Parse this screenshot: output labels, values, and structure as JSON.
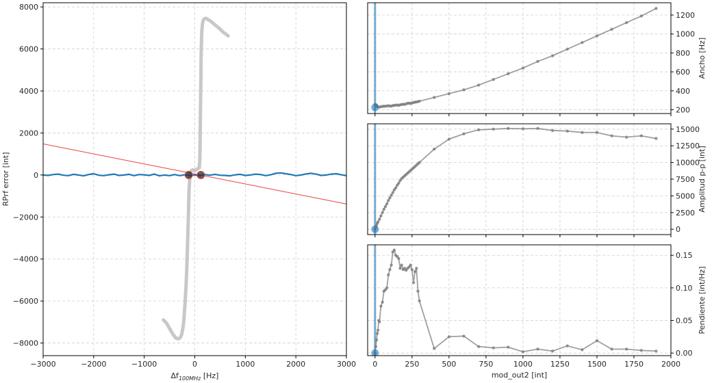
{
  "chart_data": [
    {
      "type": "line",
      "panel": "left",
      "xlabel_main": "Δf",
      "xlabel_sub": "100MHz",
      "xlabel_unit": " [Hz]",
      "ylabel": "RPrf error [int]",
      "xlim": [
        -3000,
        3000
      ],
      "ylim": [
        -8600,
        8200
      ],
      "xticks": [
        -3000,
        -2000,
        -1000,
        0,
        1000,
        2000,
        3000
      ],
      "yticks": [
        -8000,
        -6000,
        -4000,
        -2000,
        0,
        2000,
        4000,
        6000,
        8000
      ],
      "xtick_labels": [
        "−3000",
        "−2000",
        "−1000",
        "0",
        "1000",
        "2000",
        "3000"
      ],
      "ytick_labels": [
        "−8000",
        "−6000",
        "−4000",
        "−2000",
        "0",
        "2000",
        "4000",
        "6000",
        "8000"
      ],
      "grid": true,
      "colors": {
        "signal": "#1f77b4",
        "trace": "#c8c8c8",
        "fit": "#e8413c",
        "marker": "#2b2b2b"
      },
      "series": [
        {
          "role": "gray-trace",
          "x": [
            -620,
            -560,
            -500,
            -440,
            -380,
            -330,
            -290,
            -260,
            -235,
            -215,
            -205,
            -190,
            -170,
            -155,
            -140,
            -125,
            -115,
            -100,
            -90,
            -70,
            -40,
            -20,
            0,
            30,
            60,
            90,
            100,
            105,
            110,
            115,
            120,
            125,
            128,
            135,
            140,
            145,
            150,
            160,
            175,
            200,
            230,
            260,
            300,
            350,
            400,
            450,
            500,
            560,
            620,
            660
          ],
          "y": [
            -6900,
            -7050,
            -7300,
            -7550,
            -7750,
            -7800,
            -7750,
            -7600,
            -7300,
            -6900,
            -6500,
            -6000,
            -5200,
            -4200,
            -3000,
            -1800,
            -800,
            -200,
            100,
            200,
            250,
            230,
            200,
            250,
            300,
            350,
            800,
            1500,
            2500,
            3500,
            4500,
            5500,
            6000,
            6600,
            6900,
            7000,
            7150,
            7300,
            7400,
            7450,
            7450,
            7400,
            7350,
            7250,
            7150,
            7050,
            6950,
            6800,
            6700,
            6620
          ]
        },
        {
          "role": "blue-signal",
          "x": [
            -3000,
            -2900,
            -2800,
            -2700,
            -2600,
            -2500,
            -2400,
            -2300,
            -2200,
            -2100,
            -2000,
            -1900,
            -1800,
            -1700,
            -1600,
            -1500,
            -1400,
            -1300,
            -1200,
            -1100,
            -1000,
            -900,
            -800,
            -700,
            -600,
            -500,
            -400,
            -300,
            -200,
            -100,
            0,
            100,
            200,
            300,
            400,
            500,
            600,
            700,
            800,
            900,
            1000,
            1100,
            1200,
            1300,
            1400,
            1500,
            1600,
            1700,
            1800,
            1900,
            2000,
            2100,
            2200,
            2300,
            2400,
            2500,
            2600,
            2700,
            2800,
            2900,
            3000
          ],
          "y": [
            0,
            -20,
            20,
            40,
            -10,
            -30,
            30,
            0,
            -40,
            20,
            60,
            -10,
            -30,
            10,
            40,
            -20,
            0,
            30,
            -30,
            20,
            10,
            -20,
            40,
            -40,
            0,
            -30,
            20,
            -30,
            10,
            -20,
            0,
            -30,
            20,
            -10,
            30,
            -10,
            -20,
            -40,
            10,
            30,
            -20,
            0,
            40,
            20,
            -30,
            10,
            80,
            100,
            60,
            20,
            -30,
            0,
            50,
            80,
            40,
            -20,
            0,
            40,
            60,
            10,
            -30
          ]
        },
        {
          "role": "red-fit-line",
          "x": [
            -3000,
            3000
          ],
          "y": [
            1480,
            -1380
          ]
        }
      ],
      "markers": {
        "x": [
          -120,
          120
        ],
        "y": [
          0,
          0
        ]
      }
    },
    {
      "type": "line",
      "panel": "right-top",
      "ylabel": "Ancho [Hz]",
      "xlim": [
        -50,
        2000
      ],
      "ylim": [
        160,
        1330
      ],
      "yticks": [
        200,
        400,
        600,
        800,
        1000,
        1200
      ],
      "ytick_labels": [
        "200",
        "400",
        "600",
        "800",
        "1000",
        "1200"
      ],
      "xticks": [
        0,
        250,
        500,
        750,
        1000,
        1250,
        1500,
        1750,
        2000
      ],
      "grid": true,
      "vline_x": 0,
      "marker": {
        "x": 0,
        "y": 225
      },
      "x": [
        0,
        5,
        10,
        15,
        20,
        30,
        40,
        50,
        60,
        70,
        80,
        90,
        100,
        110,
        120,
        130,
        140,
        150,
        160,
        170,
        180,
        190,
        200,
        210,
        220,
        230,
        240,
        250,
        260,
        270,
        280,
        290,
        300,
        400,
        500,
        600,
        700,
        800,
        900,
        1000,
        1100,
        1200,
        1300,
        1400,
        1500,
        1600,
        1700,
        1800,
        1900
      ],
      "y": [
        260,
        240,
        250,
        235,
        230,
        228,
        232,
        235,
        238,
        236,
        240,
        242,
        240,
        238,
        244,
        246,
        248,
        250,
        246,
        252,
        255,
        258,
        256,
        262,
        268,
        270,
        265,
        272,
        276,
        280,
        282,
        286,
        290,
        330,
        370,
        410,
        460,
        520,
        580,
        640,
        710,
        770,
        840,
        910,
        980,
        1050,
        1120,
        1190,
        1270
      ]
    },
    {
      "type": "line",
      "panel": "right-middle",
      "ylabel": "Amplitud p-p [int]",
      "xlim": [
        -50,
        2000
      ],
      "ylim": [
        -800,
        15800
      ],
      "yticks": [
        0,
        2500,
        5000,
        7500,
        10000,
        12500,
        15000
      ],
      "ytick_labels": [
        "0",
        "2500",
        "5000",
        "7500",
        "10000",
        "12500",
        "15000"
      ],
      "xticks": [
        0,
        250,
        500,
        750,
        1000,
        1250,
        1500,
        1750,
        2000
      ],
      "grid": true,
      "vline_x": 0,
      "marker": {
        "x": 0,
        "y": 0
      },
      "x": [
        0,
        5,
        10,
        15,
        20,
        30,
        40,
        50,
        60,
        70,
        80,
        90,
        100,
        110,
        120,
        130,
        140,
        150,
        160,
        170,
        180,
        190,
        200,
        210,
        220,
        230,
        240,
        250,
        260,
        270,
        280,
        290,
        300,
        400,
        500,
        600,
        700,
        800,
        900,
        1000,
        1100,
        1200,
        1300,
        1400,
        1500,
        1600,
        1700,
        1800,
        1900
      ],
      "y": [
        0,
        300,
        600,
        900,
        1100,
        1500,
        2000,
        2500,
        3000,
        3400,
        3800,
        4300,
        4700,
        5100,
        5500,
        5900,
        6200,
        6600,
        6900,
        7300,
        7600,
        7800,
        8000,
        8200,
        8400,
        8600,
        8800,
        9000,
        9200,
        9400,
        9600,
        9800,
        10000,
        12000,
        13500,
        14300,
        14900,
        15000,
        15100,
        15050,
        15100,
        14800,
        14700,
        14500,
        14500,
        14000,
        13800,
        14000,
        13600
      ]
    },
    {
      "type": "line",
      "panel": "right-bottom",
      "ylabel": "Pendiente [int/Hz]",
      "xlabel": "mod_out2 [int]",
      "xlim": [
        -50,
        2000
      ],
      "ylim": [
        -0.004,
        0.166
      ],
      "yticks": [
        0,
        0.05,
        0.1,
        0.15
      ],
      "ytick_labels": [
        "0.00",
        "0.05",
        "0.10",
        "0.15"
      ],
      "xticks": [
        0,
        250,
        500,
        750,
        1000,
        1250,
        1500,
        1750,
        2000
      ],
      "xtick_labels": [
        "0",
        "250",
        "500",
        "750",
        "1000",
        "1250",
        "1500",
        "1750",
        "2000"
      ],
      "grid": true,
      "vline_x": 0,
      "marker": {
        "x": 0,
        "y": 0
      },
      "x": [
        0,
        5,
        10,
        15,
        20,
        25,
        30,
        40,
        50,
        60,
        70,
        80,
        90,
        100,
        110,
        120,
        130,
        140,
        150,
        160,
        170,
        180,
        190,
        200,
        210,
        220,
        230,
        240,
        250,
        260,
        270,
        280,
        290,
        300,
        400,
        500,
        600,
        700,
        800,
        900,
        1000,
        1100,
        1200,
        1300,
        1400,
        1500,
        1600,
        1700,
        1800,
        1900
      ],
      "y": [
        0,
        0.01,
        0.02,
        0.03,
        0.035,
        0.05,
        0.048,
        0.072,
        0.078,
        0.095,
        0.097,
        0.1,
        0.12,
        0.128,
        0.135,
        0.155,
        0.158,
        0.15,
        0.148,
        0.145,
        0.13,
        0.135,
        0.128,
        0.13,
        0.127,
        0.13,
        0.132,
        0.135,
        0.128,
        0.108,
        0.125,
        0.13,
        0.095,
        0.08,
        0.007,
        0.025,
        0.026,
        0.01,
        0.008,
        0.009,
        0.002,
        0.006,
        0.003,
        0.011,
        0.005,
        0.019,
        0.006,
        0.006,
        0.004,
        0.003
      ]
    }
  ]
}
